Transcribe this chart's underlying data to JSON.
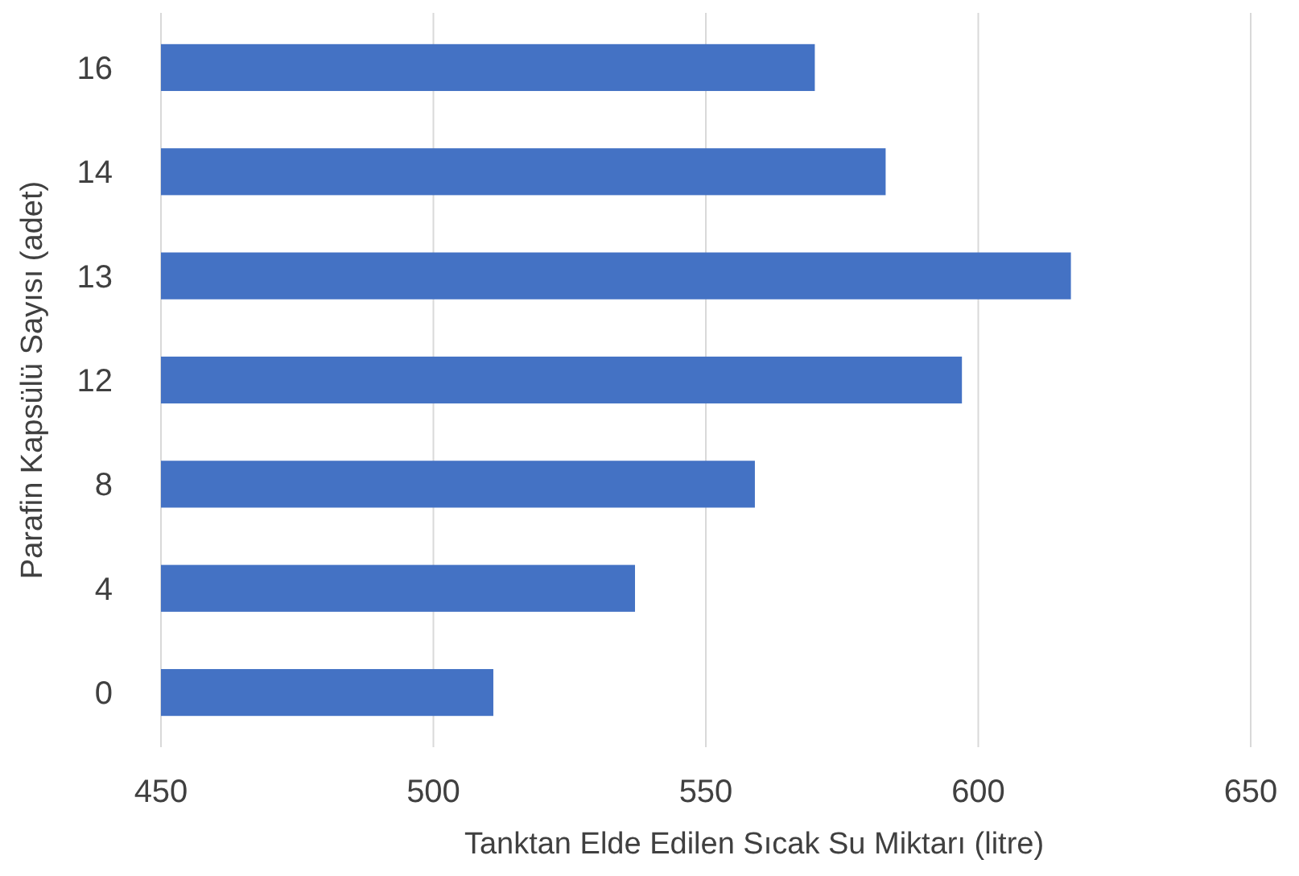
{
  "chart_data": {
    "type": "bar",
    "orientation": "horizontal",
    "xlabel": "Tanktan Elde Edilen Sıcak Su Miktarı (litre)",
    "ylabel": "Parafin Kapsülü Sayısı (adet)",
    "categories": [
      "16",
      "14",
      "13",
      "12",
      "8",
      "4",
      "0"
    ],
    "values": [
      570,
      583,
      617,
      597,
      559,
      537,
      511
    ],
    "color": "#4472c4",
    "xlim": [
      450,
      650
    ],
    "xticks": [
      450,
      500,
      550,
      600,
      650
    ],
    "grid": "x"
  }
}
